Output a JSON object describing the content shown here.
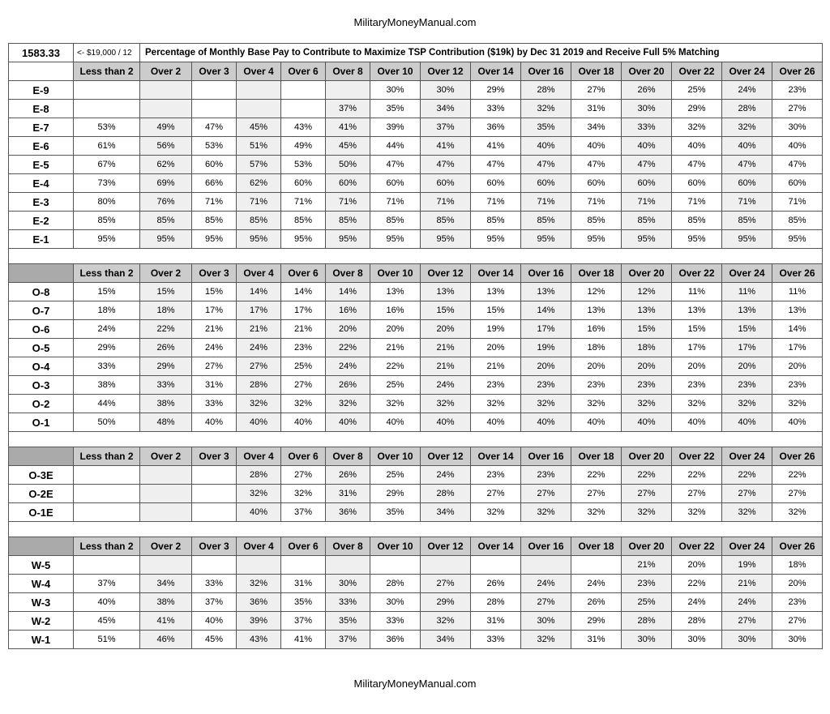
{
  "site_name": "MilitaryMoneyManual.com",
  "top": {
    "amount": "1583.33",
    "formula": "<- $19,000 / 12",
    "title": "Percentage of Monthly Base Pay to Contribute to Maximize TSP Contribution ($19k) by Dec 31 2019 and Receive Full 5% Matching"
  },
  "columns": [
    "Less than 2",
    "Over 2",
    "Over 3",
    "Over 4",
    "Over 6",
    "Over 8",
    "Over 10",
    "Over 12",
    "Over 14",
    "Over 16",
    "Over 18",
    "Over 20",
    "Over 22",
    "Over 24",
    "Over 26"
  ],
  "sections": [
    {
      "rows": [
        {
          "label": "E-9",
          "cells": [
            "",
            "",
            "",
            "",
            "",
            "",
            "30%",
            "30%",
            "29%",
            "28%",
            "27%",
            "26%",
            "25%",
            "24%",
            "23%"
          ]
        },
        {
          "label": "E-8",
          "cells": [
            "",
            "",
            "",
            "",
            "",
            "37%",
            "35%",
            "34%",
            "33%",
            "32%",
            "31%",
            "30%",
            "29%",
            "28%",
            "27%"
          ]
        },
        {
          "label": "E-7",
          "cells": [
            "53%",
            "49%",
            "47%",
            "45%",
            "43%",
            "41%",
            "39%",
            "37%",
            "36%",
            "35%",
            "34%",
            "33%",
            "32%",
            "32%",
            "30%"
          ]
        },
        {
          "label": "E-6",
          "cells": [
            "61%",
            "56%",
            "53%",
            "51%",
            "49%",
            "45%",
            "44%",
            "41%",
            "41%",
            "40%",
            "40%",
            "40%",
            "40%",
            "40%",
            "40%"
          ]
        },
        {
          "label": "E-5",
          "cells": [
            "67%",
            "62%",
            "60%",
            "57%",
            "53%",
            "50%",
            "47%",
            "47%",
            "47%",
            "47%",
            "47%",
            "47%",
            "47%",
            "47%",
            "47%"
          ]
        },
        {
          "label": "E-4",
          "cells": [
            "73%",
            "69%",
            "66%",
            "62%",
            "60%",
            "60%",
            "60%",
            "60%",
            "60%",
            "60%",
            "60%",
            "60%",
            "60%",
            "60%",
            "60%"
          ]
        },
        {
          "label": "E-3",
          "cells": [
            "80%",
            "76%",
            "71%",
            "71%",
            "71%",
            "71%",
            "71%",
            "71%",
            "71%",
            "71%",
            "71%",
            "71%",
            "71%",
            "71%",
            "71%"
          ]
        },
        {
          "label": "E-2",
          "cells": [
            "85%",
            "85%",
            "85%",
            "85%",
            "85%",
            "85%",
            "85%",
            "85%",
            "85%",
            "85%",
            "85%",
            "85%",
            "85%",
            "85%",
            "85%"
          ]
        },
        {
          "label": "E-1",
          "cells": [
            "95%",
            "95%",
            "95%",
            "95%",
            "95%",
            "95%",
            "95%",
            "95%",
            "95%",
            "95%",
            "95%",
            "95%",
            "95%",
            "95%",
            "95%"
          ]
        }
      ]
    },
    {
      "rows": [
        {
          "label": "O-8",
          "cells": [
            "15%",
            "15%",
            "15%",
            "14%",
            "14%",
            "14%",
            "13%",
            "13%",
            "13%",
            "13%",
            "12%",
            "12%",
            "11%",
            "11%",
            "11%"
          ]
        },
        {
          "label": "O-7",
          "cells": [
            "18%",
            "18%",
            "17%",
            "17%",
            "17%",
            "16%",
            "16%",
            "15%",
            "15%",
            "14%",
            "13%",
            "13%",
            "13%",
            "13%",
            "13%"
          ]
        },
        {
          "label": "O-6",
          "cells": [
            "24%",
            "22%",
            "21%",
            "21%",
            "21%",
            "20%",
            "20%",
            "20%",
            "19%",
            "17%",
            "16%",
            "15%",
            "15%",
            "15%",
            "14%"
          ]
        },
        {
          "label": "O-5",
          "cells": [
            "29%",
            "26%",
            "24%",
            "24%",
            "23%",
            "22%",
            "21%",
            "21%",
            "20%",
            "19%",
            "18%",
            "18%",
            "17%",
            "17%",
            "17%"
          ]
        },
        {
          "label": "O-4",
          "cells": [
            "33%",
            "29%",
            "27%",
            "27%",
            "25%",
            "24%",
            "22%",
            "21%",
            "21%",
            "20%",
            "20%",
            "20%",
            "20%",
            "20%",
            "20%"
          ]
        },
        {
          "label": "O-3",
          "cells": [
            "38%",
            "33%",
            "31%",
            "28%",
            "27%",
            "26%",
            "25%",
            "24%",
            "23%",
            "23%",
            "23%",
            "23%",
            "23%",
            "23%",
            "23%"
          ]
        },
        {
          "label": "O-2",
          "cells": [
            "44%",
            "38%",
            "33%",
            "32%",
            "32%",
            "32%",
            "32%",
            "32%",
            "32%",
            "32%",
            "32%",
            "32%",
            "32%",
            "32%",
            "32%"
          ]
        },
        {
          "label": "O-1",
          "cells": [
            "50%",
            "48%",
            "40%",
            "40%",
            "40%",
            "40%",
            "40%",
            "40%",
            "40%",
            "40%",
            "40%",
            "40%",
            "40%",
            "40%",
            "40%"
          ]
        }
      ]
    },
    {
      "rows": [
        {
          "label": "O-3E",
          "cells": [
            "",
            "",
            "",
            "28%",
            "27%",
            "26%",
            "25%",
            "24%",
            "23%",
            "23%",
            "22%",
            "22%",
            "22%",
            "22%",
            "22%"
          ]
        },
        {
          "label": "O-2E",
          "cells": [
            "",
            "",
            "",
            "32%",
            "32%",
            "31%",
            "29%",
            "28%",
            "27%",
            "27%",
            "27%",
            "27%",
            "27%",
            "27%",
            "27%"
          ]
        },
        {
          "label": "O-1E",
          "cells": [
            "",
            "",
            "",
            "40%",
            "37%",
            "36%",
            "35%",
            "34%",
            "32%",
            "32%",
            "32%",
            "32%",
            "32%",
            "32%",
            "32%"
          ]
        }
      ]
    },
    {
      "rows": [
        {
          "label": "W-5",
          "cells": [
            "",
            "",
            "",
            "",
            "",
            "",
            "",
            "",
            "",
            "",
            "",
            "21%",
            "20%",
            "19%",
            "18%"
          ]
        },
        {
          "label": "W-4",
          "cells": [
            "37%",
            "34%",
            "33%",
            "32%",
            "31%",
            "30%",
            "28%",
            "27%",
            "26%",
            "24%",
            "24%",
            "23%",
            "22%",
            "21%",
            "20%"
          ]
        },
        {
          "label": "W-3",
          "cells": [
            "40%",
            "38%",
            "37%",
            "36%",
            "35%",
            "33%",
            "30%",
            "29%",
            "28%",
            "27%",
            "26%",
            "25%",
            "24%",
            "24%",
            "23%"
          ]
        },
        {
          "label": "W-2",
          "cells": [
            "45%",
            "41%",
            "40%",
            "39%",
            "37%",
            "35%",
            "33%",
            "32%",
            "31%",
            "30%",
            "29%",
            "28%",
            "28%",
            "27%",
            "27%"
          ]
        },
        {
          "label": "W-1",
          "cells": [
            "51%",
            "46%",
            "45%",
            "43%",
            "41%",
            "37%",
            "36%",
            "34%",
            "33%",
            "32%",
            "31%",
            "30%",
            "30%",
            "30%",
            "30%"
          ]
        }
      ]
    }
  ],
  "colors": {
    "header_bg": "#cccccc",
    "rowlabel_empty_bg": "#aaaaaa",
    "stripe_even": "#ffffff",
    "stripe_odd": "#efefef",
    "border": "#555555"
  }
}
